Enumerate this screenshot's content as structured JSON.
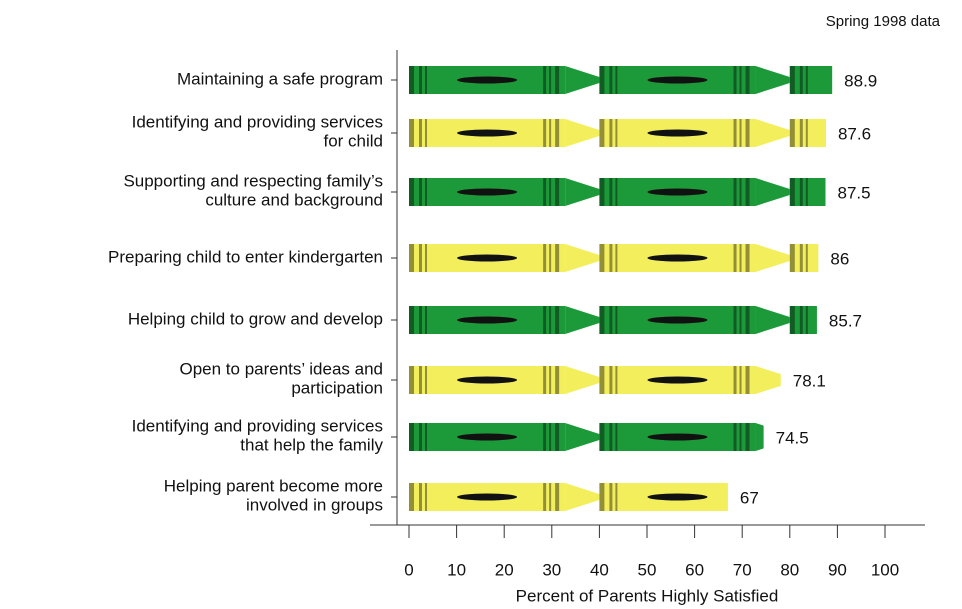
{
  "chart_data": {
    "type": "bar",
    "orientation": "horizontal",
    "subtitle": "Spring 1998 data",
    "x_label": "Percent of Parents Highly Satisfied",
    "categories": [
      "Maintaining a safe program",
      "Identifying and providing services\nfor child",
      "Supporting and respecting family’s\nculture and background",
      "Preparing child to enter kindergarten",
      "Helping child to grow and develop",
      "Open to parents’ ideas and\nparticipation",
      "Identifying and providing services\nthat help the family",
      "Helping parent become more\ninvolved in groups"
    ],
    "values": [
      88.9,
      87.6,
      87.5,
      86,
      85.7,
      78.1,
      74.5,
      67
    ],
    "colors": [
      "#1c9a3a",
      "#f3ef5c",
      "#1c9a3a",
      "#f3ef5c",
      "#1c9a3a",
      "#f3ef5c",
      "#1c9a3a",
      "#f3ef5c"
    ],
    "xlim": [
      0,
      100
    ],
    "xticks": [
      0,
      10,
      20,
      30,
      40,
      50,
      60,
      70,
      80,
      90,
      100
    ]
  }
}
